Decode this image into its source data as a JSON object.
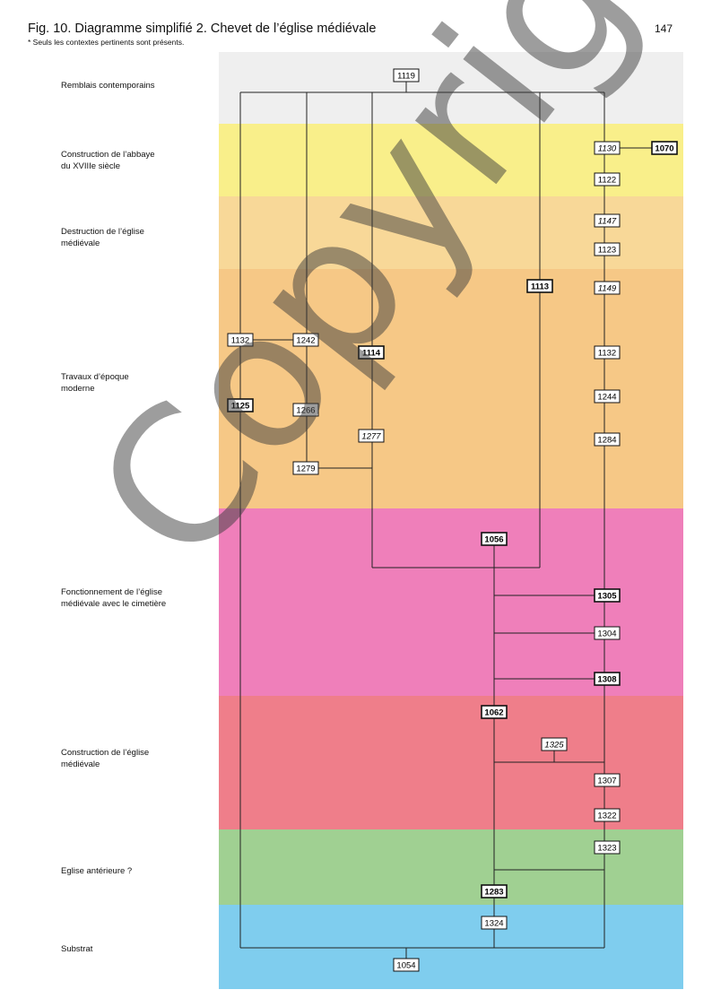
{
  "page": {
    "title": "Fig. 10. Diagramme simplifié 2. Chevet de l’église médiévale",
    "note": "* Seuls les contextes pertinents sont présents.",
    "page_number": "147",
    "watermark": "Copyright"
  },
  "phases": [
    {
      "label": "Remblais contemporains",
      "color": "#efefef"
    },
    {
      "label": "Construction de l’abbaye\ndu XVIIIe siècle",
      "color": "#f9ef8a"
    },
    {
      "label": "Destruction de l’église\nmédiévale",
      "color": "#f8d898"
    },
    {
      "label": "Travaux d’époque\nmoderne",
      "color": "#f6c886"
    },
    {
      "label": "Fonctionnement de l’église\nmédiévale avec le cimetière",
      "color": "#ef7fba"
    },
    {
      "label": "Construction de l’église\nmédiévale",
      "color": "#ef7e8a"
    },
    {
      "label": "Eglise antérieure ?",
      "color": "#a0d092"
    },
    {
      "label": "Substrat",
      "color": "#7fcdee"
    }
  ],
  "units": [
    {
      "id": "u1119",
      "label": "1119",
      "style": "normal"
    },
    {
      "id": "u1130",
      "label": "1130",
      "style": "italic"
    },
    {
      "id": "u1070",
      "label": "1070",
      "style": "bold"
    },
    {
      "id": "u1122",
      "label": "1122",
      "style": "normal"
    },
    {
      "id": "u1147",
      "label": "1147",
      "style": "italic"
    },
    {
      "id": "u1123",
      "label": "1123",
      "style": "normal"
    },
    {
      "id": "u1113",
      "label": "1113",
      "style": "bold"
    },
    {
      "id": "u1149",
      "label": "1149",
      "style": "italic"
    },
    {
      "id": "u1132a",
      "label": "1132",
      "style": "normal"
    },
    {
      "id": "u1242",
      "label": "1242",
      "style": "normal"
    },
    {
      "id": "u1114",
      "label": "1114",
      "style": "bold"
    },
    {
      "id": "u1132b",
      "label": "1132",
      "style": "normal"
    },
    {
      "id": "u1244",
      "label": "1244",
      "style": "normal"
    },
    {
      "id": "u1125",
      "label": "1125",
      "style": "bold"
    },
    {
      "id": "u1266",
      "label": "1266",
      "style": "normal"
    },
    {
      "id": "u1277",
      "label": "1277",
      "style": "italic"
    },
    {
      "id": "u1284",
      "label": "1284",
      "style": "normal"
    },
    {
      "id": "u1279",
      "label": "1279",
      "style": "normal"
    },
    {
      "id": "u1056",
      "label": "1056",
      "style": "bold"
    },
    {
      "id": "u1305",
      "label": "1305",
      "style": "bold"
    },
    {
      "id": "u1304",
      "label": "1304",
      "style": "normal"
    },
    {
      "id": "u1308",
      "label": "1308",
      "style": "bold"
    },
    {
      "id": "u1062",
      "label": "1062",
      "style": "bold"
    },
    {
      "id": "u1325",
      "label": "1325",
      "style": "italic"
    },
    {
      "id": "u1307",
      "label": "1307",
      "style": "normal"
    },
    {
      "id": "u1322",
      "label": "1322",
      "style": "normal"
    },
    {
      "id": "u1323",
      "label": "1323",
      "style": "normal"
    },
    {
      "id": "u1283",
      "label": "1283",
      "style": "bold"
    },
    {
      "id": "u1324",
      "label": "1324",
      "style": "normal"
    },
    {
      "id": "u1054",
      "label": "1054",
      "style": "normal"
    }
  ]
}
